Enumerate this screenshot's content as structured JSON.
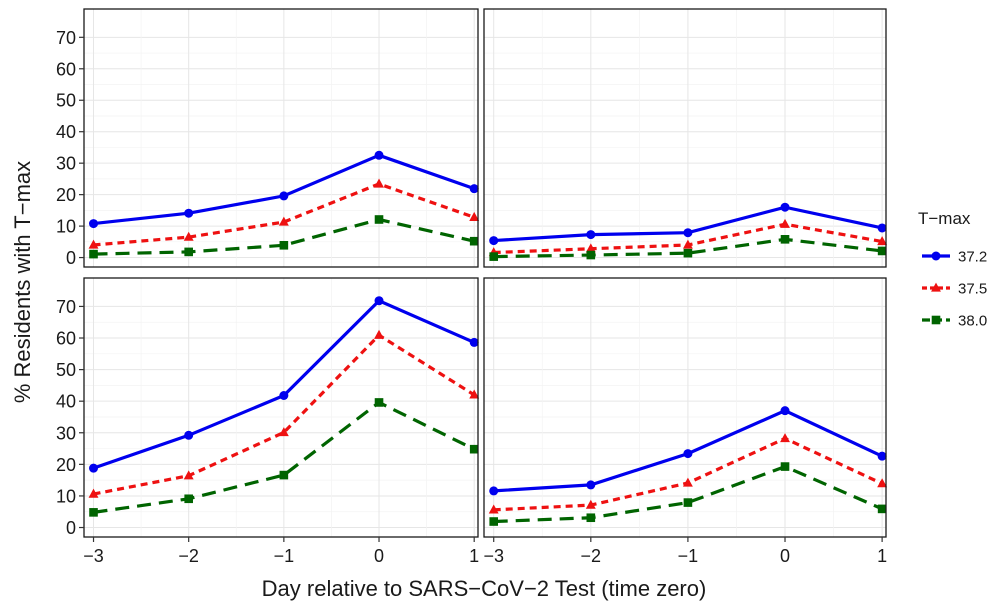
{
  "chart_data": {
    "type": "line",
    "xlabel": "Day relative to SARS−CoV−2 Test (time zero)",
    "ylabel": "% Residents with T−max",
    "x": [
      -3,
      -2,
      -1,
      0,
      1
    ],
    "x_tick_labels": [
      "−3",
      "−2",
      "−1",
      "0",
      "1"
    ],
    "y_ticks": [
      0,
      10,
      20,
      30,
      40,
      50,
      60,
      70
    ],
    "ylim": [
      -3,
      79
    ],
    "xlim": [
      -3.1,
      1.04
    ],
    "grid": true,
    "legend": {
      "title": "T−max",
      "position": "right",
      "entries": [
        "37.2",
        "37.5",
        "38.0"
      ]
    },
    "series_styles": [
      {
        "name": "37.2",
        "color": "#0000ee",
        "marker": "circle",
        "dash": "solid"
      },
      {
        "name": "37.5",
        "color": "#ee1111",
        "marker": "triangle",
        "dash": "dotted"
      },
      {
        "name": "38.0",
        "color": "#006400",
        "marker": "square",
        "dash": "dashed"
      }
    ],
    "panels": [
      {
        "row": 0,
        "col": 0,
        "series": [
          {
            "name": "37.2",
            "values": [
              10.8,
              14.1,
              19.6,
              32.5,
              21.9
            ]
          },
          {
            "name": "37.5",
            "values": [
              4.0,
              6.5,
              11.3,
              23.4,
              12.8
            ]
          },
          {
            "name": "38.0",
            "values": [
              1.1,
              1.8,
              3.9,
              12.1,
              5.2
            ]
          }
        ]
      },
      {
        "row": 0,
        "col": 1,
        "series": [
          {
            "name": "37.2",
            "values": [
              5.4,
              7.3,
              7.9,
              16.0,
              9.4
            ]
          },
          {
            "name": "37.5",
            "values": [
              1.6,
              2.8,
              4.0,
              10.6,
              5.1
            ]
          },
          {
            "name": "38.0",
            "values": [
              0.3,
              0.8,
              1.4,
              5.8,
              2.1
            ]
          }
        ]
      },
      {
        "row": 1,
        "col": 0,
        "series": [
          {
            "name": "37.2",
            "values": [
              18.8,
              29.2,
              41.8,
              71.8,
              58.6
            ]
          },
          {
            "name": "37.5",
            "values": [
              10.6,
              16.4,
              30.1,
              60.9,
              42.0
            ]
          },
          {
            "name": "38.0",
            "values": [
              4.8,
              9.1,
              16.6,
              39.6,
              24.8
            ]
          }
        ]
      },
      {
        "row": 1,
        "col": 1,
        "series": [
          {
            "name": "37.2",
            "values": [
              11.6,
              13.5,
              23.4,
              37.0,
              22.6
            ]
          },
          {
            "name": "37.5",
            "values": [
              5.6,
              7.1,
              14.1,
              28.2,
              13.9
            ]
          },
          {
            "name": "38.0",
            "values": [
              1.9,
              3.1,
              7.9,
              19.3,
              5.9
            ]
          }
        ]
      }
    ]
  }
}
